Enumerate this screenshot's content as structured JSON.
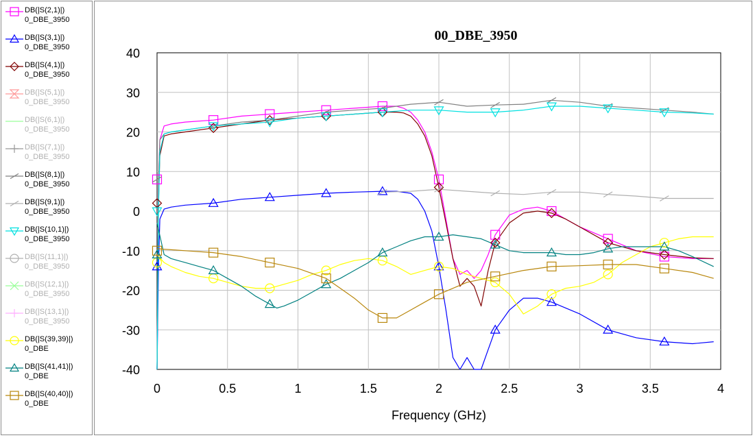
{
  "chart_data": {
    "type": "line",
    "title": "00_DBE_3950",
    "xlabel": "Frequency (GHz)",
    "ylabel": "",
    "xlim": [
      0,
      4
    ],
    "ylim": [
      -40,
      40
    ],
    "x_ticks": [
      "0",
      "0.5",
      "1",
      "1.5",
      "2",
      "2.5",
      "3",
      "3.5",
      "4"
    ],
    "y_ticks": [
      "40",
      "30",
      "20",
      "10",
      "0",
      "-10",
      "-20",
      "-30",
      "-40"
    ],
    "grid": true,
    "legend_position": "left",
    "series": [
      {
        "name": "DB(|S(2,1)|)",
        "sub": "0_DBE_3950",
        "color": "#ff00ff",
        "marker": "square",
        "visible": true,
        "x": [
          0,
          0.01,
          0.02,
          0.05,
          0.1,
          0.2,
          0.4,
          0.6,
          0.8,
          1.0,
          1.2,
          1.4,
          1.6,
          1.7,
          1.75,
          1.8,
          1.85,
          1.9,
          1.95,
          2.0,
          2.05,
          2.1,
          2.15,
          2.2,
          2.25,
          2.3,
          2.35,
          2.4,
          2.5,
          2.6,
          2.7,
          2.8,
          2.9,
          3.0,
          3.2,
          3.4,
          3.6,
          3.8,
          3.95
        ],
        "y": [
          -40,
          8,
          18,
          21.5,
          22,
          22.5,
          23,
          24,
          24.5,
          25,
          25.5,
          26,
          26.5,
          26.5,
          26,
          25,
          23,
          20,
          15,
          8,
          -2,
          -12,
          -16,
          -15,
          -17,
          -15,
          -11,
          -6,
          -1,
          0.5,
          1,
          0,
          -2,
          -4,
          -7,
          -10,
          -11.5,
          -12,
          -12
        ]
      },
      {
        "name": "DB(|S(3,1)|)",
        "sub": "0_DBE_3950",
        "color": "#0000ff",
        "marker": "triangle",
        "visible": true,
        "x": [
          0,
          0.01,
          0.02,
          0.05,
          0.1,
          0.2,
          0.4,
          0.6,
          0.8,
          1.0,
          1.2,
          1.4,
          1.6,
          1.7,
          1.8,
          1.85,
          1.9,
          1.95,
          2.0,
          2.05,
          2.1,
          2.15,
          2.2,
          2.25,
          2.3,
          2.35,
          2.4,
          2.5,
          2.6,
          2.7,
          2.8,
          3.0,
          3.2,
          3.4,
          3.6,
          3.8,
          3.95
        ],
        "y": [
          -40,
          -14,
          -2,
          0.5,
          1,
          1.5,
          2,
          3,
          3.5,
          4,
          4.5,
          4.8,
          5,
          5,
          4.5,
          3,
          0,
          -5,
          -14,
          -25,
          -37,
          -40,
          -37,
          -40,
          -40,
          -35,
          -30,
          -25,
          -22,
          -22,
          -23,
          -26,
          -30,
          -32,
          -33,
          -33.5,
          -33
        ]
      },
      {
        "name": "DB(|S(4,1)|)",
        "sub": "0_DBE_3950",
        "color": "#800000",
        "marker": "diamond",
        "visible": true,
        "x": [
          0,
          0.01,
          0.02,
          0.05,
          0.1,
          0.2,
          0.4,
          0.6,
          0.8,
          1.0,
          1.2,
          1.4,
          1.6,
          1.7,
          1.75,
          1.8,
          1.85,
          1.9,
          1.95,
          2.0,
          2.05,
          2.1,
          2.15,
          2.2,
          2.25,
          2.3,
          2.35,
          2.4,
          2.5,
          2.6,
          2.7,
          2.8,
          2.9,
          3.0,
          3.2,
          3.4,
          3.6,
          3.8,
          3.95
        ],
        "y": [
          -40,
          2,
          14,
          19,
          19.5,
          20,
          21,
          22,
          23,
          23.5,
          24,
          24.5,
          25,
          25,
          24.8,
          24,
          22,
          19,
          14,
          6,
          -3,
          -12,
          -19,
          -17,
          -19,
          -24,
          -15,
          -8,
          -3,
          -0.5,
          0,
          -0.5,
          -2,
          -4,
          -8,
          -10,
          -11,
          -11.8,
          -12
        ]
      },
      {
        "name": "DB(|S(5,1)|)",
        "sub": "0_DBE_3950",
        "color": "#ff9999",
        "marker": "hourglass",
        "visible": false,
        "x": [],
        "y": []
      },
      {
        "name": "DB(|S(6,1)|)",
        "sub": "0_DBE_3950",
        "color": "#99ff99",
        "marker": "none",
        "visible": false,
        "x": [],
        "y": []
      },
      {
        "name": "DB(|S(7,1)|)",
        "sub": "0_DBE_3950",
        "color": "#999999",
        "marker": "plus",
        "visible": false,
        "x": [],
        "y": []
      },
      {
        "name": "DB(|S(8,1)|)",
        "sub": "0_DBE_3950",
        "color": "#808080",
        "marker": "slash",
        "visible": true,
        "x": [
          0,
          0.01,
          0.02,
          0.05,
          0.1,
          0.2,
          0.4,
          0.6,
          0.8,
          1.0,
          1.2,
          1.4,
          1.6,
          1.8,
          2.0,
          2.2,
          2.4,
          2.6,
          2.8,
          3.0,
          3.2,
          3.4,
          3.6,
          3.8,
          3.95
        ],
        "y": [
          -40,
          8,
          18,
          19.5,
          20,
          20.5,
          21.5,
          22.5,
          23,
          24,
          25,
          25.5,
          26,
          27,
          27.5,
          26.5,
          26.8,
          27,
          28,
          27.5,
          26.5,
          26,
          25.5,
          25,
          24.5
        ]
      },
      {
        "name": "DB(|S(9,1)|)",
        "sub": "0_DBE_3950",
        "color": "#b0b0b0",
        "marker": "slash",
        "visible": true,
        "x": [
          1.6,
          1.8,
          2.0,
          2.2,
          2.4,
          2.6,
          2.8,
          3.0,
          3.2,
          3.4,
          3.6,
          3.8,
          3.95
        ],
        "y": [
          4.8,
          5,
          5.5,
          5,
          4.5,
          4.2,
          4.8,
          4.8,
          4.2,
          3.8,
          3.2,
          3.2,
          3.2
        ]
      },
      {
        "name": "DB(|S(10,1)|)",
        "sub": "0_DBE_3950",
        "color": "#00e0e0",
        "marker": "invtriangle",
        "visible": true,
        "x": [
          0,
          0.01,
          0.02,
          0.05,
          0.1,
          0.2,
          0.4,
          0.6,
          0.8,
          1.0,
          1.2,
          1.4,
          1.6,
          1.8,
          2.0,
          2.2,
          2.4,
          2.6,
          2.8,
          3.0,
          3.2,
          3.4,
          3.6,
          3.8,
          3.95
        ],
        "y": [
          -40,
          0,
          15,
          19.5,
          20,
          20.5,
          21.5,
          22,
          22.5,
          23.5,
          24,
          24.5,
          25,
          25.5,
          25.5,
          25,
          25,
          25.5,
          26.5,
          26.5,
          26,
          25.5,
          25,
          24.8,
          24.5
        ]
      },
      {
        "name": "DB(|S(11,1)|)",
        "sub": "0_DBE_3950",
        "color": "#b0b0b0",
        "marker": "circle",
        "visible": false,
        "x": [],
        "y": []
      },
      {
        "name": "DB(|S(12,1)|)",
        "sub": "0_DBE_3950",
        "color": "#99ff99",
        "marker": "x",
        "visible": false,
        "x": [],
        "y": []
      },
      {
        "name": "DB(|S(13,1)|)",
        "sub": "0_DBE_3950",
        "color": "#ffb0ff",
        "marker": "plus",
        "visible": false,
        "x": [],
        "y": []
      },
      {
        "name": "DB(|S(39,39)|)",
        "sub": "0_DBE",
        "color": "#ffff00",
        "marker": "circle",
        "visible": true,
        "x": [
          0,
          0.05,
          0.1,
          0.2,
          0.3,
          0.4,
          0.5,
          0.6,
          0.7,
          0.8,
          0.9,
          1.0,
          1.1,
          1.2,
          1.3,
          1.4,
          1.5,
          1.6,
          1.7,
          1.8,
          1.9,
          2.0,
          2.1,
          2.2,
          2.3,
          2.4,
          2.5,
          2.6,
          2.7,
          2.8,
          2.9,
          3.0,
          3.1,
          3.2,
          3.3,
          3.4,
          3.5,
          3.6,
          3.7,
          3.8,
          3.95
        ],
        "y": [
          -11,
          -13,
          -14,
          -15.5,
          -16.5,
          -17,
          -18,
          -19,
          -19.5,
          -19.5,
          -18.5,
          -17.5,
          -16,
          -15,
          -13.5,
          -12.5,
          -12,
          -12.5,
          -14,
          -16,
          -15,
          -14,
          -14.5,
          -16,
          -17,
          -18,
          -21,
          -26,
          -24,
          -21,
          -19.5,
          -19,
          -18,
          -16,
          -13,
          -11,
          -9,
          -8,
          -7,
          -6.5,
          -6.5
        ]
      },
      {
        "name": "DB(|S(41,41)|)",
        "sub": "0_DBE",
        "color": "#008080",
        "marker": "triangle",
        "visible": true,
        "x": [
          0,
          0.05,
          0.1,
          0.2,
          0.3,
          0.4,
          0.5,
          0.6,
          0.7,
          0.8,
          0.85,
          0.9,
          1.0,
          1.1,
          1.2,
          1.3,
          1.4,
          1.5,
          1.6,
          1.7,
          1.8,
          1.9,
          2.0,
          2.1,
          2.2,
          2.3,
          2.4,
          2.5,
          2.6,
          2.7,
          2.8,
          2.9,
          3.0,
          3.1,
          3.2,
          3.3,
          3.4,
          3.5,
          3.6,
          3.7,
          3.8,
          3.95
        ],
        "y": [
          -3,
          -11,
          -12,
          -13,
          -14,
          -15,
          -17,
          -19,
          -21.5,
          -23.5,
          -24.5,
          -24,
          -22.5,
          -20.5,
          -18.5,
          -17,
          -15,
          -13,
          -10.5,
          -9,
          -7.5,
          -6.5,
          -6.5,
          -6,
          -6.5,
          -7,
          -8.5,
          -10,
          -10.5,
          -10.5,
          -10.5,
          -11,
          -11,
          -10.5,
          -9.5,
          -9,
          -9,
          -9,
          -9,
          -10,
          -11.5,
          -14
        ]
      },
      {
        "name": "DB(|S(40,40)|)",
        "sub": "0_DBE",
        "color": "#b8860b",
        "marker": "square",
        "visible": true,
        "x": [
          0,
          0.2,
          0.4,
          0.6,
          0.8,
          1.0,
          1.2,
          1.3,
          1.4,
          1.5,
          1.6,
          1.7,
          1.8,
          1.9,
          2.0,
          2.2,
          2.4,
          2.6,
          2.8,
          3.0,
          3.2,
          3.4,
          3.6,
          3.8,
          3.95
        ],
        "y": [
          -9.5,
          -10,
          -10.5,
          -11.5,
          -13,
          -14.5,
          -17,
          -19.5,
          -22,
          -25,
          -27,
          -27,
          -25,
          -23,
          -21,
          -18,
          -16.5,
          -15,
          -14,
          -13.8,
          -13.5,
          -13.5,
          -14.5,
          -15.5,
          -17
        ]
      }
    ]
  }
}
